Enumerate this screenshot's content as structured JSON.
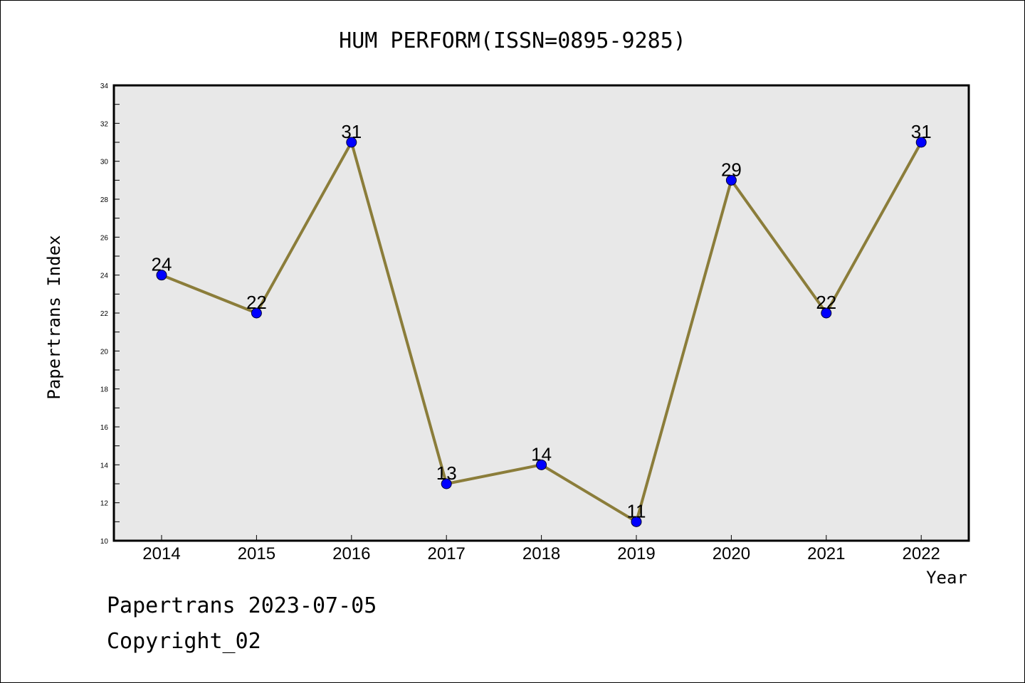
{
  "chart_data": {
    "type": "line",
    "title": "HUM PERFORM(ISSN=0895-9285)",
    "xlabel": "Year",
    "ylabel": "Papertrans Index",
    "x": [
      2014,
      2015,
      2016,
      2017,
      2018,
      2019,
      2020,
      2021,
      2022
    ],
    "values": [
      24,
      22,
      31,
      13,
      14,
      11,
      29,
      22,
      31
    ],
    "ylim": [
      10,
      34
    ],
    "yticks": [
      10,
      12,
      14,
      16,
      18,
      20,
      22,
      24,
      26,
      28,
      30,
      32,
      34
    ],
    "grid": false,
    "line_color": "#8B7D3A",
    "marker_color": "#0000FF",
    "plot_background": "#E8E8E8"
  },
  "footer": {
    "line1": "Papertrans 2023-07-05",
    "line2": "Copyright_02"
  }
}
